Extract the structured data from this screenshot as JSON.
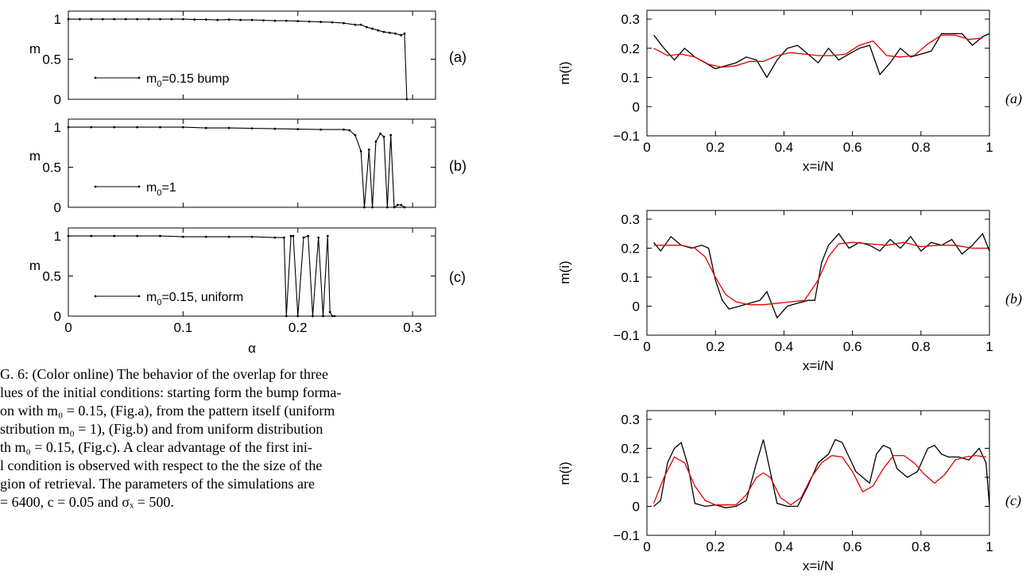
{
  "caption": {
    "lines": [
      "G. 6: (Color online) The behavior of the overlap for three",
      "lues of the initial conditions: starting form the bump forma-",
      "on with m₀ = 0.15, (Fig.a), from the pattern itself (uniform",
      "stribution m₀ = 1), (Fig.b) and from uniform distribution",
      "th m₀ = 0.15, (Fig.c).  A clear advantage of the first ini-",
      "l condition is observed with respect to the the size of the",
      "gion of retrieval.  The parameters of the simulations are",
      "= 6400, c = 0.05 and σₓ = 500."
    ]
  },
  "chart_data": [
    {
      "type": "line",
      "panel": "(a)",
      "ylabel": "m",
      "xlim": [
        0,
        0.32
      ],
      "ylim": [
        0,
        1.1
      ],
      "xticks": [],
      "yticks": [
        0,
        0.5,
        1
      ],
      "ytick_labels": [
        "0",
        "0.5",
        "1"
      ],
      "legend": {
        "position": "bottom-left",
        "entries": [
          "m0=0.15 bump"
        ]
      },
      "series": [
        {
          "name": "m0=0.15 bump",
          "color": "#000000",
          "x": [
            0.0,
            0.01,
            0.02,
            0.03,
            0.04,
            0.05,
            0.06,
            0.07,
            0.08,
            0.09,
            0.1,
            0.11,
            0.12,
            0.13,
            0.14,
            0.15,
            0.16,
            0.17,
            0.18,
            0.19,
            0.2,
            0.21,
            0.22,
            0.23,
            0.24,
            0.25,
            0.255,
            0.26,
            0.265,
            0.27,
            0.275,
            0.28,
            0.285,
            0.29,
            0.293,
            0.295
          ],
          "y": [
            1.0,
            1.0,
            1.0,
            1.0,
            1.0,
            1.0,
            1.0,
            1.0,
            1.0,
            1.0,
            1.0,
            0.995,
            0.995,
            0.99,
            0.995,
            0.99,
            0.99,
            0.985,
            0.98,
            0.98,
            0.975,
            0.97,
            0.965,
            0.96,
            0.95,
            0.93,
            0.93,
            0.9,
            0.88,
            0.86,
            0.84,
            0.83,
            0.82,
            0.8,
            0.82,
            0.0
          ]
        }
      ],
      "right_label": "(a)"
    },
    {
      "type": "line",
      "panel": "(b)",
      "ylabel": "m",
      "xlim": [
        0,
        0.32
      ],
      "ylim": [
        0,
        1.1
      ],
      "xticks": [],
      "yticks": [
        0,
        0.5,
        1
      ],
      "ytick_labels": [
        "0",
        "0.5",
        "1"
      ],
      "legend": {
        "position": "bottom-left",
        "entries": [
          "m0=1"
        ]
      },
      "series": [
        {
          "name": "m0=1",
          "color": "#000000",
          "x": [
            0.0,
            0.02,
            0.04,
            0.06,
            0.08,
            0.1,
            0.12,
            0.14,
            0.16,
            0.18,
            0.2,
            0.22,
            0.24,
            0.245,
            0.25,
            0.255,
            0.258,
            0.262,
            0.265,
            0.268,
            0.272,
            0.275,
            0.278,
            0.281,
            0.284,
            0.287,
            0.29,
            0.293
          ],
          "y": [
            1.0,
            1.0,
            1.0,
            1.0,
            1.0,
            1.0,
            0.99,
            0.99,
            0.985,
            0.98,
            0.975,
            0.97,
            0.97,
            0.96,
            0.9,
            0.7,
            0.0,
            0.72,
            0.0,
            0.82,
            0.92,
            0.88,
            0.0,
            0.9,
            0.0,
            0.03,
            0.03,
            0.0
          ]
        }
      ],
      "right_label": "(b)"
    },
    {
      "type": "line",
      "panel": "(c)",
      "ylabel": "m",
      "xlabel": "α",
      "xlim": [
        0,
        0.32
      ],
      "ylim": [
        0,
        1.1
      ],
      "xticks": [
        0,
        0.1,
        0.2,
        0.3
      ],
      "xtick_labels": [
        "0",
        "0.1",
        "0.2",
        "0.3"
      ],
      "yticks": [
        0,
        0.5,
        1
      ],
      "ytick_labels": [
        "0",
        "0.5",
        "1"
      ],
      "legend": {
        "position": "bottom-left",
        "entries": [
          "m0=0.15, uniform"
        ]
      },
      "series": [
        {
          "name": "m0=0.15, uniform",
          "color": "#000000",
          "x": [
            0.0,
            0.02,
            0.04,
            0.06,
            0.08,
            0.1,
            0.12,
            0.14,
            0.16,
            0.18,
            0.188,
            0.19,
            0.194,
            0.196,
            0.2,
            0.205,
            0.209,
            0.213,
            0.218,
            0.222,
            0.226,
            0.228,
            0.23,
            0.232
          ],
          "y": [
            1.0,
            1.0,
            1.0,
            1.0,
            1.0,
            0.99,
            0.99,
            0.99,
            0.99,
            0.98,
            0.98,
            0.0,
            1.0,
            1.0,
            0.0,
            0.98,
            1.0,
            0.0,
            0.98,
            0.0,
            1.0,
            0.05,
            0.0,
            0.0
          ]
        }
      ],
      "right_label": "(c)"
    },
    {
      "type": "line",
      "panel": "(a)",
      "ylabel": "m(i)",
      "xlabel": "x=i/N",
      "xlim": [
        0,
        1
      ],
      "ylim": [
        -0.1,
        0.33
      ],
      "xticks": [
        0,
        0.2,
        0.4,
        0.6,
        0.8,
        1
      ],
      "xtick_labels": [
        "0",
        "0.2",
        "0.4",
        "0.6",
        "0.8",
        "1"
      ],
      "yticks": [
        -0.1,
        0,
        0.1,
        0.2,
        0.3
      ],
      "ytick_labels": [
        "−0.1",
        "0",
        "0.1",
        "0.2",
        "0.3"
      ],
      "series": [
        {
          "color": "#000000",
          "x": [
            0.02,
            0.05,
            0.08,
            0.11,
            0.14,
            0.17,
            0.2,
            0.23,
            0.26,
            0.29,
            0.32,
            0.35,
            0.38,
            0.41,
            0.44,
            0.47,
            0.5,
            0.53,
            0.56,
            0.59,
            0.62,
            0.65,
            0.68,
            0.71,
            0.74,
            0.77,
            0.8,
            0.83,
            0.86,
            0.89,
            0.92,
            0.95,
            0.98,
            1.0
          ],
          "y": [
            0.245,
            0.2,
            0.16,
            0.2,
            0.17,
            0.15,
            0.13,
            0.14,
            0.15,
            0.17,
            0.16,
            0.1,
            0.16,
            0.2,
            0.21,
            0.18,
            0.15,
            0.2,
            0.16,
            0.18,
            0.2,
            0.21,
            0.11,
            0.15,
            0.2,
            0.17,
            0.18,
            0.19,
            0.25,
            0.25,
            0.25,
            0.21,
            0.24,
            0.25
          ]
        },
        {
          "color": "#e00000",
          "x": [
            0.02,
            0.06,
            0.1,
            0.14,
            0.18,
            0.22,
            0.26,
            0.3,
            0.34,
            0.38,
            0.42,
            0.46,
            0.5,
            0.54,
            0.58,
            0.62,
            0.66,
            0.7,
            0.74,
            0.78,
            0.82,
            0.86,
            0.9,
            0.94,
            0.98
          ],
          "y": [
            0.2,
            0.175,
            0.18,
            0.17,
            0.145,
            0.135,
            0.14,
            0.155,
            0.155,
            0.175,
            0.185,
            0.18,
            0.175,
            0.175,
            0.18,
            0.21,
            0.225,
            0.175,
            0.17,
            0.175,
            0.215,
            0.245,
            0.245,
            0.23,
            0.235
          ]
        }
      ],
      "right_label": "(a)"
    },
    {
      "type": "line",
      "panel": "(b)",
      "ylabel": "m(i)",
      "xlabel": "x=i/N",
      "xlim": [
        0,
        1
      ],
      "ylim": [
        -0.1,
        0.33
      ],
      "xticks": [
        0,
        0.2,
        0.4,
        0.6,
        0.8,
        1
      ],
      "xtick_labels": [
        "0",
        "0.2",
        "0.4",
        "0.6",
        "0.8",
        "1"
      ],
      "yticks": [
        -0.1,
        0,
        0.1,
        0.2,
        0.3
      ],
      "ytick_labels": [
        "−0.1",
        "0",
        "0.1",
        "0.2",
        "0.3"
      ],
      "series": [
        {
          "color": "#000000",
          "x": [
            0.02,
            0.04,
            0.07,
            0.1,
            0.13,
            0.16,
            0.18,
            0.2,
            0.22,
            0.24,
            0.27,
            0.3,
            0.33,
            0.35,
            0.38,
            0.41,
            0.44,
            0.47,
            0.49,
            0.51,
            0.53,
            0.56,
            0.59,
            0.62,
            0.65,
            0.68,
            0.71,
            0.74,
            0.77,
            0.8,
            0.83,
            0.86,
            0.89,
            0.92,
            0.95,
            0.98,
            1.0
          ],
          "y": [
            0.22,
            0.19,
            0.24,
            0.21,
            0.2,
            0.21,
            0.2,
            0.09,
            0.02,
            -0.01,
            0.0,
            0.01,
            0.02,
            0.05,
            -0.04,
            0.0,
            0.01,
            0.02,
            0.02,
            0.15,
            0.21,
            0.25,
            0.2,
            0.22,
            0.21,
            0.19,
            0.23,
            0.2,
            0.24,
            0.19,
            0.22,
            0.21,
            0.23,
            0.18,
            0.21,
            0.25,
            0.19
          ]
        },
        {
          "color": "#e00000",
          "x": [
            0.02,
            0.06,
            0.1,
            0.14,
            0.17,
            0.2,
            0.23,
            0.26,
            0.3,
            0.34,
            0.38,
            0.42,
            0.46,
            0.5,
            0.53,
            0.56,
            0.6,
            0.65,
            0.7,
            0.75,
            0.8,
            0.85,
            0.9,
            0.95,
            0.99
          ],
          "y": [
            0.21,
            0.21,
            0.21,
            0.2,
            0.17,
            0.1,
            0.04,
            0.015,
            0.005,
            0.005,
            0.01,
            0.015,
            0.02,
            0.09,
            0.17,
            0.215,
            0.22,
            0.215,
            0.21,
            0.22,
            0.205,
            0.21,
            0.21,
            0.2,
            0.2
          ]
        }
      ],
      "right_label": "(b)"
    },
    {
      "type": "line",
      "panel": "(c)",
      "ylabel": "m(i)",
      "xlabel": "x=i/N",
      "xlim": [
        0,
        1
      ],
      "ylim": [
        -0.1,
        0.33
      ],
      "xticks": [
        0,
        0.2,
        0.4,
        0.6,
        0.8,
        1
      ],
      "xtick_labels": [
        "0",
        "0.2",
        "0.4",
        "0.6",
        "0.8",
        "1"
      ],
      "yticks": [
        -0.1,
        0,
        0.1,
        0.2,
        0.3
      ],
      "ytick_labels": [
        "−0.1",
        "0",
        "0.1",
        "0.2",
        "0.3"
      ],
      "series": [
        {
          "color": "#000000",
          "x": [
            0.02,
            0.04,
            0.06,
            0.08,
            0.1,
            0.12,
            0.14,
            0.17,
            0.2,
            0.23,
            0.26,
            0.29,
            0.32,
            0.34,
            0.36,
            0.38,
            0.41,
            0.44,
            0.47,
            0.5,
            0.53,
            0.55,
            0.57,
            0.59,
            0.61,
            0.63,
            0.65,
            0.67,
            0.69,
            0.71,
            0.73,
            0.76,
            0.79,
            0.82,
            0.84,
            0.86,
            0.88,
            0.91,
            0.94,
            0.97,
            0.99,
            1.0
          ],
          "y": [
            0.0,
            0.02,
            0.15,
            0.2,
            0.22,
            0.14,
            0.01,
            0.0,
            0.005,
            -0.005,
            0.0,
            0.02,
            0.15,
            0.23,
            0.12,
            0.01,
            0.0,
            0.0,
            0.07,
            0.15,
            0.18,
            0.23,
            0.22,
            0.17,
            0.12,
            0.1,
            0.08,
            0.18,
            0.21,
            0.2,
            0.13,
            0.1,
            0.12,
            0.2,
            0.21,
            0.18,
            0.17,
            0.17,
            0.16,
            0.2,
            0.15,
            0.0
          ]
        },
        {
          "color": "#e00000",
          "x": [
            0.02,
            0.05,
            0.08,
            0.11,
            0.14,
            0.17,
            0.2,
            0.23,
            0.26,
            0.29,
            0.32,
            0.34,
            0.36,
            0.39,
            0.42,
            0.45,
            0.48,
            0.51,
            0.54,
            0.57,
            0.6,
            0.63,
            0.66,
            0.69,
            0.72,
            0.75,
            0.78,
            0.81,
            0.84,
            0.87,
            0.9,
            0.93,
            0.96,
            0.99
          ],
          "y": [
            0.01,
            0.1,
            0.17,
            0.15,
            0.07,
            0.02,
            0.005,
            0.005,
            0.005,
            0.04,
            0.1,
            0.115,
            0.1,
            0.03,
            0.005,
            0.03,
            0.1,
            0.15,
            0.175,
            0.17,
            0.12,
            0.05,
            0.07,
            0.13,
            0.175,
            0.175,
            0.15,
            0.11,
            0.08,
            0.11,
            0.16,
            0.17,
            0.175,
            0.17
          ]
        }
      ],
      "right_label": "(c)"
    }
  ]
}
